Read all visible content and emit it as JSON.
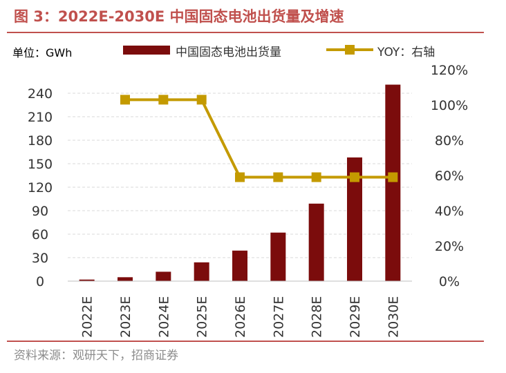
{
  "title": "图 3：2022E-2030E 中国固态电池出货量及增速",
  "unit_label": "单位：GWh",
  "source": "资料来源：观研天下，招商证券",
  "colors": {
    "bar": "#7b0c0c",
    "line": "#c49a00",
    "accent": "#c0504d",
    "grid": "#d9d9d9"
  },
  "chart_data": {
    "type": "bar",
    "categories": [
      "2022E",
      "2023E",
      "2024E",
      "2025E",
      "2026E",
      "2027E",
      "2028E",
      "2029E",
      "2030E"
    ],
    "series": [
      {
        "name": "中国固态电池出货量",
        "type": "bar",
        "axis": "left",
        "values": [
          2,
          5,
          12,
          24,
          39,
          62,
          99,
          158,
          251
        ]
      },
      {
        "name": "YOY：右轴",
        "type": "line",
        "axis": "right",
        "values": [
          null,
          1.03,
          1.03,
          1.03,
          0.59,
          0.59,
          0.59,
          0.59,
          0.59
        ]
      }
    ],
    "y_left": {
      "ticks": [
        "0",
        "30",
        "60",
        "90",
        "120",
        "150",
        "180",
        "210",
        "240"
      ],
      "lim": [
        0,
        270
      ]
    },
    "y_right": {
      "ticks": [
        "0%",
        "20%",
        "40%",
        "60%",
        "80%",
        "100%",
        "120%"
      ],
      "lim": [
        0,
        1.2
      ]
    },
    "grid": true,
    "legend_position": "top"
  }
}
